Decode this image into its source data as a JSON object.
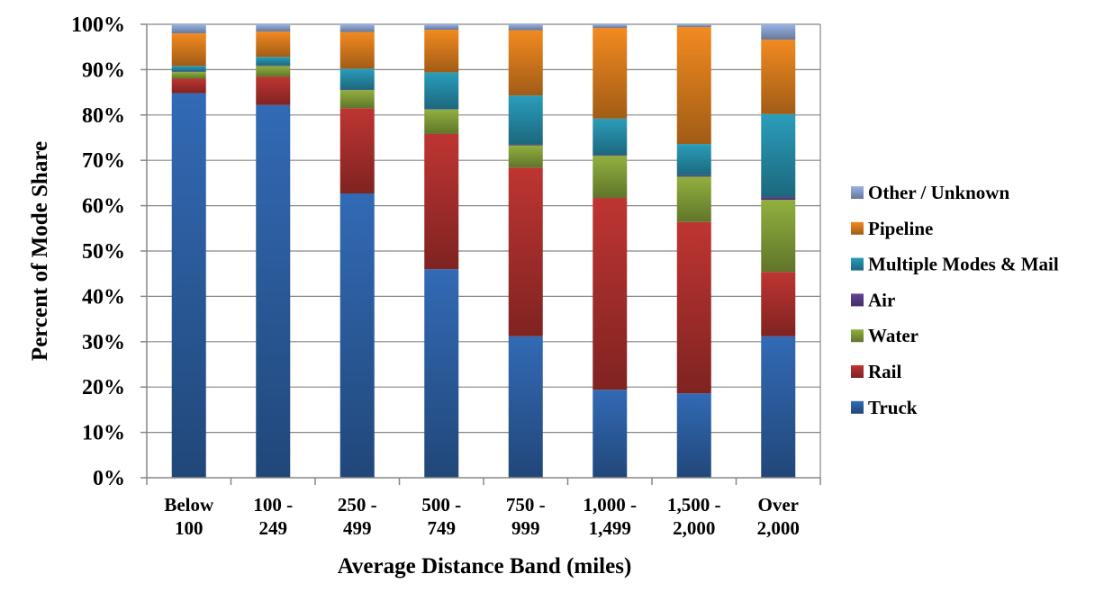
{
  "chart_data": {
    "type": "bar",
    "stacked": true,
    "title": "",
    "xlabel": "Average Distance Band (miles)",
    "ylabel": "Percent of Mode Share",
    "ylim": [
      0,
      100
    ],
    "y_ticks": [
      "0%",
      "10%",
      "20%",
      "30%",
      "40%",
      "50%",
      "60%",
      "70%",
      "80%",
      "90%",
      "100%"
    ],
    "grid": true,
    "legend_position": "right",
    "categories": [
      [
        "Below",
        "100"
      ],
      [
        "100 -",
        "249"
      ],
      [
        "250 -",
        "499"
      ],
      [
        "500 -",
        "749"
      ],
      [
        "750 -",
        "999"
      ],
      [
        "1,000 -",
        "1,499"
      ],
      [
        "1,500 -",
        "2,000"
      ],
      [
        "Over",
        "2,000"
      ]
    ],
    "series": [
      {
        "name": "Truck",
        "color": "#2e62a8",
        "values": [
          84.8,
          82.2,
          62.7,
          46.0,
          31.2,
          19.4,
          18.6,
          31.2
        ]
      },
      {
        "name": "Rail",
        "color": "#b0312e",
        "values": [
          3.2,
          6.2,
          18.8,
          29.8,
          37.2,
          42.3,
          37.8,
          14.2
        ]
      },
      {
        "name": "Water",
        "color": "#86a33a",
        "values": [
          1.5,
          2.4,
          4.0,
          5.4,
          4.9,
          9.3,
          10.0,
          15.9
        ]
      },
      {
        "name": "Air",
        "color": "#5e3e8c",
        "values": [
          0.1,
          0.1,
          0.1,
          0.1,
          0.2,
          0.2,
          0.3,
          0.6
        ]
      },
      {
        "name": "Multiple Modes & Mail",
        "color": "#2791ad",
        "values": [
          1.2,
          1.9,
          4.6,
          8.1,
          10.8,
          8.0,
          6.9,
          18.3
        ]
      },
      {
        "name": "Pipeline",
        "color": "#e0801e",
        "values": [
          7.2,
          5.6,
          8.1,
          9.4,
          14.4,
          20.0,
          25.8,
          16.4
        ]
      },
      {
        "name": "Other / Unknown",
        "color": "#8ea6d4",
        "values": [
          2.0,
          1.6,
          1.7,
          1.2,
          1.3,
          0.8,
          0.6,
          3.4
        ]
      }
    ]
  }
}
